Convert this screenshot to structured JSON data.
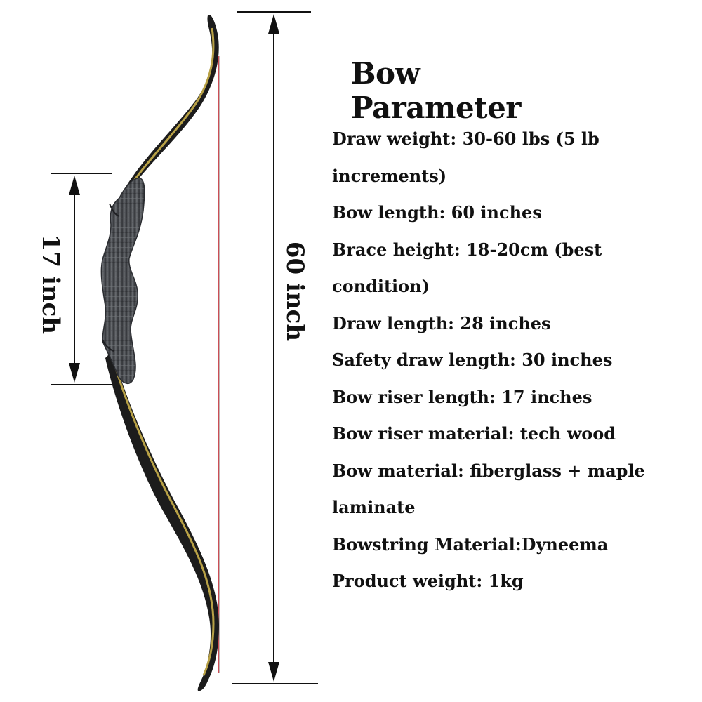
{
  "title": "Bow Parameter",
  "dimensions": {
    "riser_label": "17 inch",
    "bow_label": "60 inch"
  },
  "specs": [
    "Draw weight: 30-60 lbs (5 lb",
    "increments)",
    "Bow length: 60 inches",
    "Brace height: 18-20cm (best",
    "condition)",
    "Draw length: 28 inches",
    "Safety draw length: 30 inches",
    "Bow riser length: 17 inches",
    "Bow riser material: tech wood",
    "Bow material: fiberglass + maple",
    "laminate",
    "Bowstring Material:Dyneema",
    "Product weight: 1kg"
  ],
  "colors": {
    "text": "#111111",
    "string": "#c0202a",
    "limb_wood": "#b8a146",
    "limb_dark": "#1c1c1c",
    "riser": "#4a4d52"
  }
}
